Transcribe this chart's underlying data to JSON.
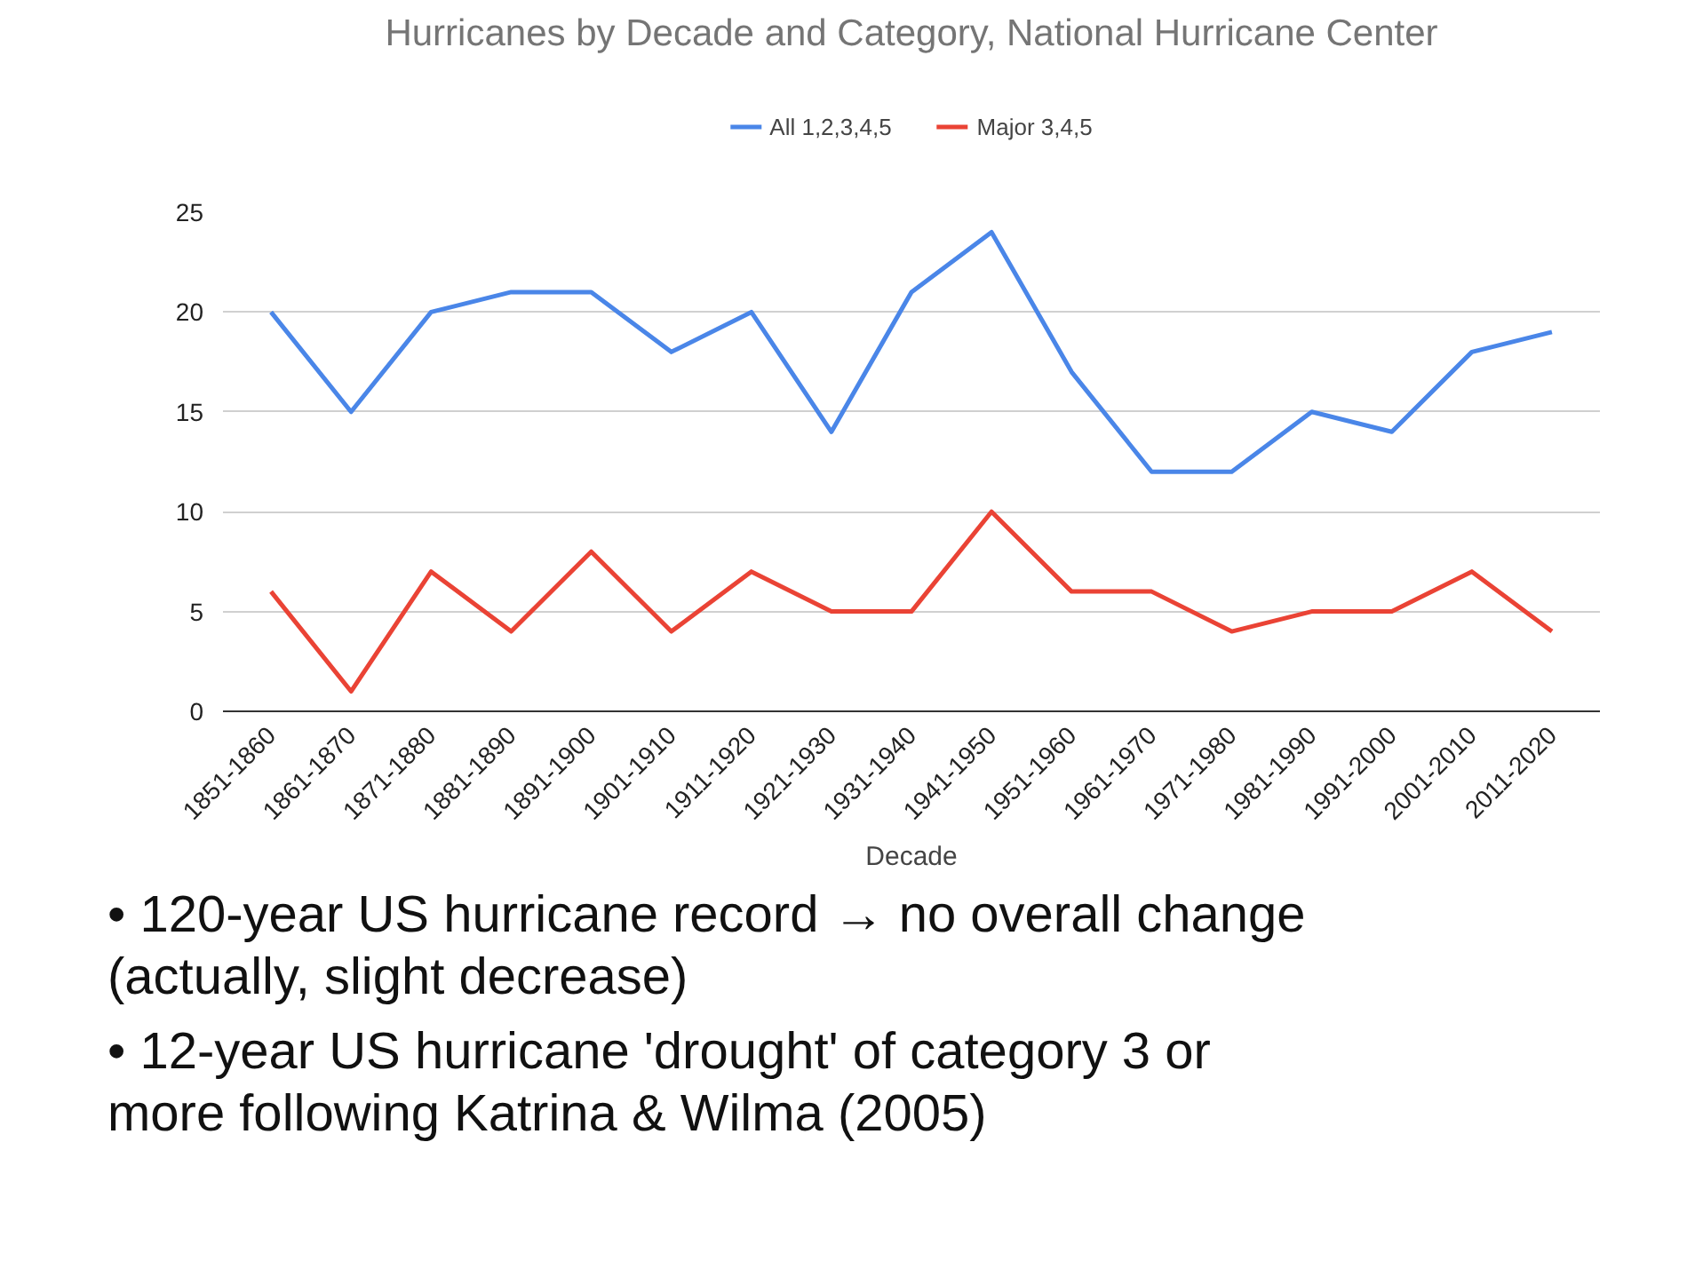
{
  "chart_data": {
    "type": "line",
    "title": "Hurricanes by Decade and Category, National Hurricane Center",
    "xlabel": "Decade",
    "categories": [
      "1851-1860",
      "1861-1870",
      "1871-1880",
      "1881-1890",
      "1891-1900",
      "1901-1910",
      "1911-1920",
      "1921-1930",
      "1931-1940",
      "1941-1950",
      "1951-1960",
      "1961-1970",
      "1971-1980",
      "1981-1990",
      "1991-2000",
      "2001-2010",
      "2011-2020"
    ],
    "series": [
      {
        "name": "All 1,2,3,4,5",
        "color": "#4a86e8",
        "values": [
          20,
          15,
          20,
          21,
          21,
          18,
          20,
          14,
          21,
          24,
          17,
          12,
          12,
          15,
          14,
          18,
          19
        ]
      },
      {
        "name": "Major 3,4,5",
        "color": "#ea4335",
        "values": [
          6,
          1,
          7,
          4,
          8,
          4,
          7,
          5,
          5,
          10,
          6,
          6,
          4,
          5,
          5,
          7,
          4
        ]
      }
    ],
    "ylim": [
      0,
      25
    ],
    "yticks": [
      0,
      5,
      10,
      15,
      20,
      25
    ],
    "grid": "y",
    "legend": "top",
    "annotations": [
      "• 120-year US hurricane record → no overall change (actually, slight decrease)",
      "• 12-year US hurricane 'drought' of category 3 or more following Katrina &  Wilma (2005)"
    ]
  }
}
